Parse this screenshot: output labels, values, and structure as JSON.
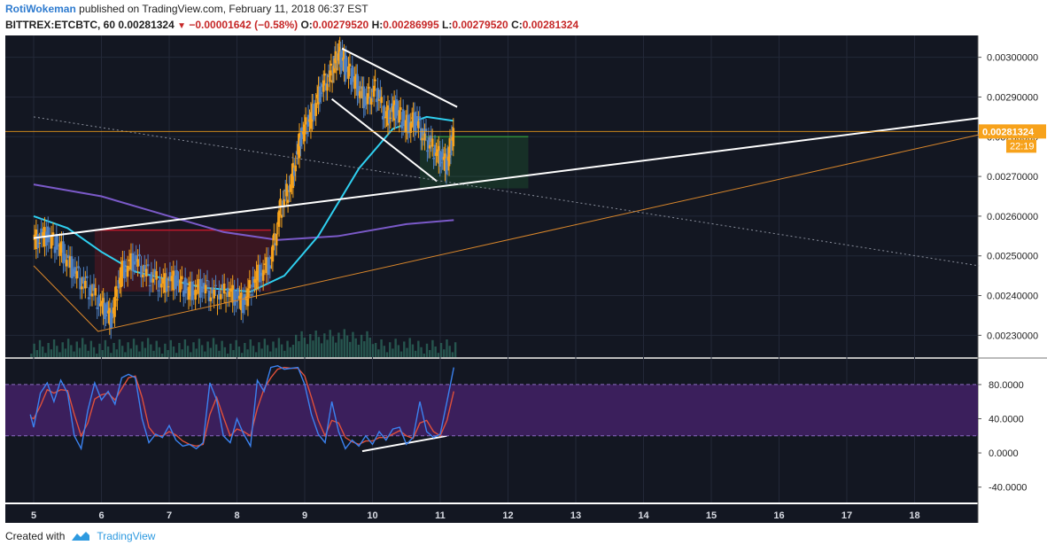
{
  "header": {
    "author": "RotiWokeman",
    "published_text": "published on TradingView.com, February 11, 2018 06:37 EST",
    "symbol": "BITTREX:ETCBTC, 60",
    "last": "0.00281324",
    "change": "−0.00001642 (−0.58%)",
    "o_label": "O:",
    "o": "0.00279520",
    "h_label": "H:",
    "h": "0.00286995",
    "l_label": "L:",
    "l": "0.00279520",
    "c_label": "C:",
    "c": "0.00281324"
  },
  "footer": {
    "created_with": "Created with",
    "brand": "TradingView"
  },
  "colors": {
    "background": "#131722",
    "rsi_band": "#3b1f5c",
    "candle_up": "#f7a21b",
    "candle_down": "#4f80c2",
    "volume": "#2e6b5e",
    "price_marker": "#f7a21b"
  },
  "chart_data": {
    "type": "candlestick",
    "x_ticks": [
      "5",
      "6",
      "7",
      "8",
      "9",
      "10",
      "11",
      "12",
      "13",
      "14",
      "15",
      "16",
      "17",
      "18"
    ],
    "price_ticks": [
      "0.00300000",
      "0.00290000",
      "0.00280000",
      "0.00270000",
      "0.00260000",
      "0.00250000",
      "0.00240000",
      "0.00230000"
    ],
    "price_ticks_values": [
      0.003,
      0.0029,
      0.0028,
      0.0027,
      0.0026,
      0.0025,
      0.0024,
      0.0023
    ],
    "price_range": [
      0.002245,
      0.003055
    ],
    "current_price": "0.00281324",
    "current_price_value": 0.00281324,
    "countdown": "22:19",
    "price_series": [
      [
        5.0,
        0.00254
      ],
      [
        5.2,
        0.00255
      ],
      [
        5.4,
        0.00252
      ],
      [
        5.6,
        0.00246
      ],
      [
        5.8,
        0.00242
      ],
      [
        6.0,
        0.00238
      ],
      [
        6.15,
        0.00234
      ],
      [
        6.3,
        0.00246
      ],
      [
        6.5,
        0.00249
      ],
      [
        6.7,
        0.00245
      ],
      [
        6.9,
        0.00243
      ],
      [
        7.1,
        0.00244
      ],
      [
        7.3,
        0.00241
      ],
      [
        7.5,
        0.00242
      ],
      [
        7.7,
        0.0024
      ],
      [
        7.9,
        0.00241
      ],
      [
        8.1,
        0.00238
      ],
      [
        8.3,
        0.00245
      ],
      [
        8.5,
        0.00248
      ],
      [
        8.65,
        0.00262
      ],
      [
        8.8,
        0.00268
      ],
      [
        8.95,
        0.0028
      ],
      [
        9.1,
        0.00285
      ],
      [
        9.25,
        0.00292
      ],
      [
        9.4,
        0.00296
      ],
      [
        9.5,
        0.00301
      ],
      [
        9.6,
        0.00298
      ],
      [
        9.75,
        0.00294
      ],
      [
        9.9,
        0.00289
      ],
      [
        10.05,
        0.00292
      ],
      [
        10.2,
        0.00285
      ],
      [
        10.35,
        0.00287
      ],
      [
        10.5,
        0.00283
      ],
      [
        10.65,
        0.00284
      ],
      [
        10.8,
        0.00279
      ],
      [
        10.95,
        0.00276
      ],
      [
        11.1,
        0.00273
      ],
      [
        11.2,
        0.00281
      ]
    ],
    "rsi_ticks": [
      "80.0000",
      "40.0000",
      "0.0000",
      "-40.0000"
    ],
    "rsi_ticks_values": [
      80,
      40,
      0,
      -40
    ],
    "rsi_range": [
      -58,
      110
    ],
    "rsi_band": [
      20,
      80
    ],
    "stoch_k": [
      [
        4.95,
        45
      ],
      [
        5.0,
        30
      ],
      [
        5.1,
        70
      ],
      [
        5.2,
        82
      ],
      [
        5.3,
        60
      ],
      [
        5.4,
        85
      ],
      [
        5.5,
        70
      ],
      [
        5.6,
        20
      ],
      [
        5.7,
        5
      ],
      [
        5.8,
        50
      ],
      [
        5.9,
        82
      ],
      [
        6.0,
        62
      ],
      [
        6.1,
        72
      ],
      [
        6.2,
        57
      ],
      [
        6.3,
        88
      ],
      [
        6.4,
        92
      ],
      [
        6.5,
        88
      ],
      [
        6.6,
        40
      ],
      [
        6.7,
        12
      ],
      [
        6.8,
        22
      ],
      [
        6.9,
        18
      ],
      [
        7.0,
        32
      ],
      [
        7.1,
        15
      ],
      [
        7.2,
        8
      ],
      [
        7.3,
        10
      ],
      [
        7.4,
        5
      ],
      [
        7.5,
        12
      ],
      [
        7.6,
        82
      ],
      [
        7.7,
        62
      ],
      [
        7.8,
        20
      ],
      [
        7.9,
        12
      ],
      [
        8.0,
        40
      ],
      [
        8.1,
        22
      ],
      [
        8.2,
        8
      ],
      [
        8.3,
        85
      ],
      [
        8.4,
        72
      ],
      [
        8.5,
        100
      ],
      [
        8.6,
        102
      ],
      [
        8.7,
        98
      ],
      [
        8.8,
        99
      ],
      [
        8.9,
        100
      ],
      [
        9.0,
        80
      ],
      [
        9.1,
        45
      ],
      [
        9.2,
        22
      ],
      [
        9.3,
        12
      ],
      [
        9.4,
        60
      ],
      [
        9.5,
        25
      ],
      [
        9.6,
        5
      ],
      [
        9.7,
        15
      ],
      [
        9.8,
        8
      ],
      [
        9.9,
        20
      ],
      [
        10.0,
        10
      ],
      [
        10.1,
        25
      ],
      [
        10.2,
        15
      ],
      [
        10.3,
        28
      ],
      [
        10.4,
        30
      ],
      [
        10.5,
        10
      ],
      [
        10.6,
        18
      ],
      [
        10.7,
        60
      ],
      [
        10.8,
        25
      ],
      [
        10.9,
        18
      ],
      [
        11.0,
        22
      ],
      [
        11.1,
        60
      ],
      [
        11.2,
        100
      ]
    ],
    "stoch_d": [
      [
        4.95,
        42
      ],
      [
        5.0,
        40
      ],
      [
        5.1,
        55
      ],
      [
        5.2,
        74
      ],
      [
        5.3,
        70
      ],
      [
        5.4,
        74
      ],
      [
        5.5,
        73
      ],
      [
        5.6,
        45
      ],
      [
        5.7,
        20
      ],
      [
        5.8,
        35
      ],
      [
        5.9,
        63
      ],
      [
        6.0,
        68
      ],
      [
        6.1,
        70
      ],
      [
        6.2,
        62
      ],
      [
        6.3,
        75
      ],
      [
        6.4,
        88
      ],
      [
        6.5,
        90
      ],
      [
        6.6,
        65
      ],
      [
        6.7,
        30
      ],
      [
        6.8,
        20
      ],
      [
        6.9,
        20
      ],
      [
        7.0,
        25
      ],
      [
        7.1,
        21
      ],
      [
        7.2,
        14
      ],
      [
        7.3,
        10
      ],
      [
        7.4,
        8
      ],
      [
        7.5,
        10
      ],
      [
        7.6,
        45
      ],
      [
        7.7,
        65
      ],
      [
        7.8,
        42
      ],
      [
        7.9,
        20
      ],
      [
        8.0,
        28
      ],
      [
        8.1,
        25
      ],
      [
        8.2,
        20
      ],
      [
        8.3,
        52
      ],
      [
        8.4,
        75
      ],
      [
        8.5,
        88
      ],
      [
        8.6,
        98
      ],
      [
        8.7,
        100
      ],
      [
        8.8,
        99
      ],
      [
        8.9,
        99
      ],
      [
        9.0,
        90
      ],
      [
        9.1,
        65
      ],
      [
        9.2,
        38
      ],
      [
        9.3,
        20
      ],
      [
        9.4,
        38
      ],
      [
        9.5,
        35
      ],
      [
        9.6,
        18
      ],
      [
        9.7,
        13
      ],
      [
        9.8,
        10
      ],
      [
        9.9,
        14
      ],
      [
        10.0,
        14
      ],
      [
        10.1,
        18
      ],
      [
        10.2,
        18
      ],
      [
        10.3,
        22
      ],
      [
        10.4,
        26
      ],
      [
        10.5,
        20
      ],
      [
        10.6,
        17
      ],
      [
        10.7,
        35
      ],
      [
        10.8,
        38
      ],
      [
        10.9,
        25
      ],
      [
        11.0,
        20
      ],
      [
        11.1,
        38
      ],
      [
        11.2,
        72
      ]
    ],
    "trendlines": [
      {
        "kind": "white",
        "points": [
          [
            5.0,
            0.002545
          ],
          [
            18.95,
            0.002847
          ]
        ]
      },
      {
        "kind": "white",
        "points": [
          [
            9.55,
            0.003022
          ],
          [
            11.25,
            0.002875
          ]
        ]
      },
      {
        "kind": "white",
        "points": [
          [
            9.4,
            0.002895
          ],
          [
            10.95,
            0.002688
          ]
        ]
      },
      {
        "kind": "orange",
        "points": [
          [
            5.0,
            0.002475
          ],
          [
            5.95,
            0.00231
          ],
          [
            18.95,
            0.002805
          ]
        ]
      },
      {
        "kind": "dotted",
        "points": [
          [
            5.0,
            0.00285
          ],
          [
            18.95,
            0.002475
          ]
        ]
      },
      {
        "kind": "white",
        "rsi": true,
        "points": [
          [
            9.5,
            45
          ],
          [
            11.2,
            68
          ]
        ]
      },
      {
        "kind": "white",
        "rsi": true,
        "points": [
          [
            9.85,
            2
          ],
          [
            11.1,
            20
          ]
        ]
      }
    ],
    "ma_slow": [
      [
        5.0,
        0.00268
      ],
      [
        6.0,
        0.00265
      ],
      [
        7.0,
        0.0026
      ],
      [
        7.8,
        0.00256
      ],
      [
        8.6,
        0.00254
      ],
      [
        9.5,
        0.00255
      ],
      [
        10.5,
        0.00258
      ],
      [
        11.2,
        0.00259
      ]
    ],
    "ma_fast": [
      [
        5.0,
        0.0026
      ],
      [
        5.5,
        0.00257
      ],
      [
        6.0,
        0.00251
      ],
      [
        6.5,
        0.00246
      ],
      [
        7.5,
        0.00242
      ],
      [
        8.2,
        0.00241
      ],
      [
        8.7,
        0.00245
      ],
      [
        9.2,
        0.00255
      ],
      [
        9.8,
        0.00272
      ],
      [
        10.3,
        0.00282
      ],
      [
        10.8,
        0.00285
      ],
      [
        11.2,
        0.00284
      ]
    ],
    "cloud": [
      {
        "from": 5.9,
        "to": 8.5,
        "upper": 0.002565,
        "lower": 0.00241,
        "color": "red"
      },
      {
        "from": 10.7,
        "to": 12.3,
        "upper": 0.0028,
        "lower": 0.00267,
        "color": "green"
      }
    ]
  }
}
